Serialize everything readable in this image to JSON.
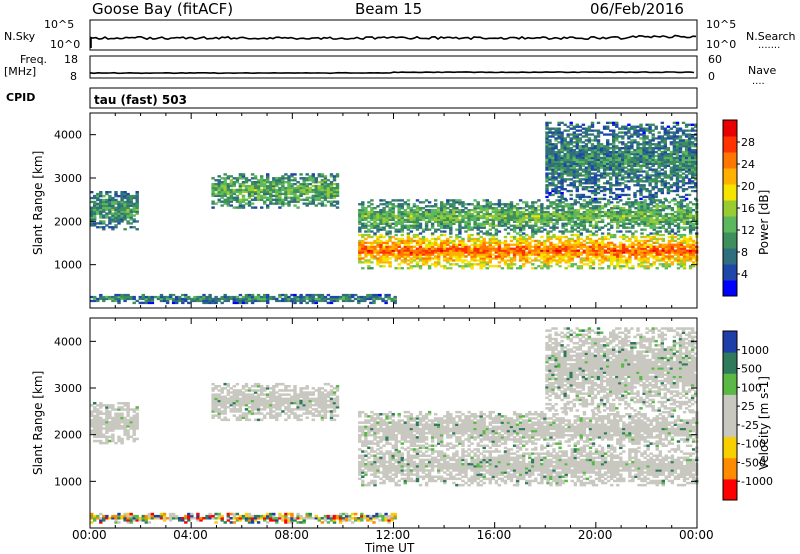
{
  "header": {
    "station": "Goose Bay (fitACF)",
    "beam": "Beam 15",
    "date": "06/Feb/2016"
  },
  "panels": {
    "nsky": {
      "label": "N.Sky",
      "ticks": [
        "10^5",
        "10^0"
      ],
      "right_label": "N.Search",
      "right_ticks": [
        "10^5",
        "10^0"
      ]
    },
    "freq": {
      "label_1": "Freq.",
      "label_2": "[MHz]",
      "ticks": [
        "18",
        "8"
      ],
      "right_label": "Nave",
      "right_ticks": [
        "60",
        "0"
      ]
    },
    "cpid": {
      "label": "CPID",
      "mode_text": "tau (fast) 503"
    }
  },
  "axes": {
    "ylabel": "Slant Range [km]",
    "yticks": [
      "4000",
      "3000",
      "2000",
      "1000"
    ],
    "xticks": [
      "00:00",
      "04:00",
      "08:00",
      "12:00",
      "16:00",
      "20:00",
      "00:00"
    ],
    "xlabel": "Time UT"
  },
  "colorbars": {
    "power": {
      "label": "Power [dB]",
      "ticks": [
        "28",
        "24",
        "20",
        "16",
        "12",
        "8",
        "4"
      ],
      "colors": [
        "#0000ff",
        "#1f47a8",
        "#2e6e7e",
        "#3e8f5c",
        "#5cb85c",
        "#99cc33",
        "#f5e300",
        "#ffb000",
        "#ff7700",
        "#ff3300",
        "#e80000"
      ]
    },
    "velocity": {
      "label": "Velocity [m s-1]",
      "ticks": [
        "1000",
        "500",
        "100",
        "25",
        "-25",
        "-100",
        "-500",
        "-1000"
      ],
      "colors": [
        "#1f3fa8",
        "#2e7a5a",
        "#5ab845",
        "#c8c8c0",
        "#c8c8c0",
        "#f8d000",
        "#ff8c00",
        "#ff0000"
      ]
    }
  },
  "chart_data": [
    {
      "type": "heatmap",
      "name": "Power",
      "xlabel": "Time UT",
      "ylabel": "Slant Range [km]",
      "xlim": [
        0,
        24
      ],
      "ylim": [
        0,
        4500
      ],
      "colorbar": "Power [dB]",
      "bands": [
        {
          "t0": 0.0,
          "t1": 1.9,
          "r0": 1800,
          "r1": 2700,
          "level": 10
        },
        {
          "t0": 4.8,
          "t1": 9.8,
          "r0": 2300,
          "r1": 3100,
          "level": 12
        },
        {
          "t0": 10.6,
          "t1": 24.0,
          "r0": 900,
          "r1": 1700,
          "level": 24
        },
        {
          "t0": 10.6,
          "t1": 24.0,
          "r0": 1700,
          "r1": 2500,
          "level": 12
        },
        {
          "t0": 18.0,
          "t1": 24.0,
          "r0": 2500,
          "r1": 4300,
          "level": 8
        },
        {
          "t0": 0.0,
          "t1": 12.0,
          "r0": 100,
          "r1": 300,
          "level": 8
        }
      ]
    },
    {
      "type": "heatmap",
      "name": "Velocity",
      "xlabel": "Time UT",
      "ylabel": "Slant Range [km]",
      "xlim": [
        0,
        24
      ],
      "ylim": [
        0,
        4500
      ],
      "colorbar": "Velocity [m s-1]",
      "bands": [
        {
          "t0": 0.0,
          "t1": 1.9,
          "r0": 1800,
          "r1": 2700,
          "level": 0
        },
        {
          "t0": 4.8,
          "t1": 9.8,
          "r0": 2300,
          "r1": 3100,
          "level": 0
        },
        {
          "t0": 10.6,
          "t1": 24.0,
          "r0": 900,
          "r1": 1700,
          "level": 0
        },
        {
          "t0": 10.6,
          "t1": 24.0,
          "r0": 1700,
          "r1": 2500,
          "level": 0
        },
        {
          "t0": 18.0,
          "t1": 24.0,
          "r0": 2500,
          "r1": 4300,
          "level": 0
        },
        {
          "t0": 0.0,
          "t1": 12.0,
          "r0": 100,
          "r1": 300,
          "level": 50
        }
      ]
    }
  ]
}
